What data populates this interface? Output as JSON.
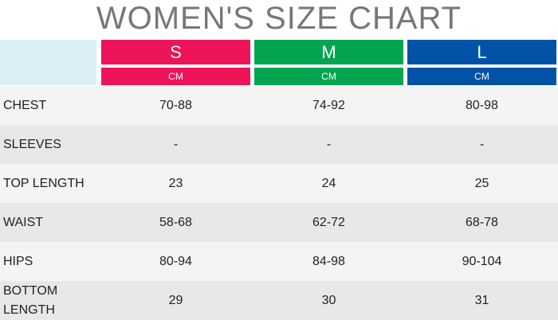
{
  "title": "WOMEN'S SIZE CHART",
  "sizes": [
    {
      "label": "S",
      "unit": "CM",
      "color": "#ee1459"
    },
    {
      "label": "M",
      "unit": "CM",
      "color": "#03a550"
    },
    {
      "label": "L",
      "unit": "CM",
      "color": "#0252a7"
    }
  ],
  "rows": [
    {
      "label": "CHEST",
      "values": [
        "70-88",
        "74-92",
        "80-98"
      ]
    },
    {
      "label": "SLEEVES",
      "values": [
        "-",
        "-",
        "-"
      ]
    },
    {
      "label": "TOP LENGTH",
      "values": [
        "23",
        "24",
        "25"
      ]
    },
    {
      "label": "WAIST",
      "values": [
        "58-68",
        "62-72",
        "68-78"
      ]
    },
    {
      "label": "HIPS",
      "values": [
        "80-94",
        "84-98",
        "90-104"
      ]
    },
    {
      "label": "BOTTOM LENGTH",
      "values": [
        "29",
        "30",
        "31"
      ]
    }
  ]
}
